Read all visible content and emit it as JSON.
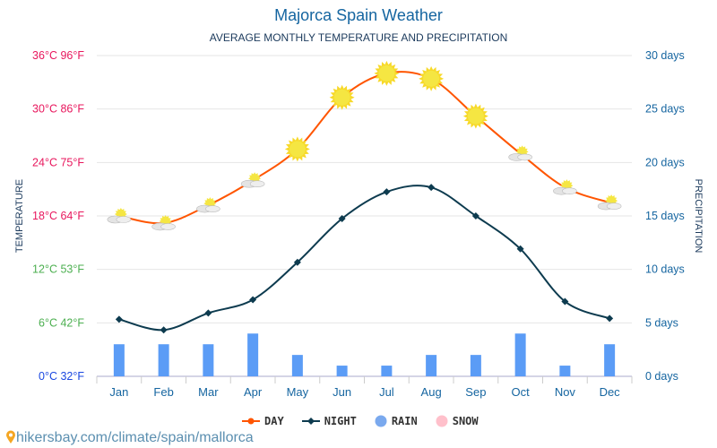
{
  "title": "Majorca Spain Weather",
  "subtitle": "AVERAGE MONTHLY TEMPERATURE AND PRECIPITATION",
  "source": "hikersbay.com/climate/spain/mallorca",
  "legend": {
    "day": "DAY",
    "night": "NIGHT",
    "rain": "RAIN",
    "snow": "SNOW"
  },
  "colors": {
    "day": "#ff5500",
    "night": "#0d3b4f",
    "rain": "#5b9cf6",
    "snow": "#ffc0cb",
    "hot": "#e8175d",
    "mild": "#4caf50",
    "cold": "#1a47e0",
    "right": "#1565a0"
  },
  "chart_data": {
    "type": "line+bar",
    "title": "Majorca Spain Weather",
    "categories": [
      "Jan",
      "Feb",
      "Mar",
      "Apr",
      "May",
      "Jun",
      "Jul",
      "Aug",
      "Sep",
      "Oct",
      "Nov",
      "Dec"
    ],
    "ylabel_left": "TEMPERATURE",
    "ylabel_right": "PRECIPITATION",
    "ylim_left": [
      0,
      36
    ],
    "ylim_right": [
      0,
      30
    ],
    "left_ticks": [
      "0°C 32°F",
      "6°C 42°F",
      "12°C 53°F",
      "18°C 64°F",
      "24°C 75°F",
      "30°C 86°F",
      "36°C 96°F"
    ],
    "right_ticks": [
      "0 days",
      "5 days",
      "10 days",
      "15 days",
      "20 days",
      "25 days",
      "30 days"
    ],
    "series": [
      {
        "name": "DAY",
        "values": [
          18,
          17.2,
          19.2,
          22,
          25.5,
          31.3,
          34,
          33.4,
          29.2,
          25,
          21.2,
          19.5
        ]
      },
      {
        "name": "NIGHT",
        "values": [
          6.4,
          5.2,
          7.1,
          8.6,
          12.8,
          17.7,
          20.7,
          21.2,
          18,
          14.3,
          8.4,
          6.5
        ]
      },
      {
        "name": "RAIN",
        "axis": "right",
        "values": [
          3,
          3,
          3,
          4,
          2,
          1,
          1,
          2,
          2,
          4,
          1,
          3
        ]
      }
    ],
    "icons": [
      "partly-cloudy",
      "partly-cloudy",
      "partly-cloudy",
      "partly-cloudy",
      "sun",
      "sun",
      "sun",
      "sun",
      "sun",
      "partly-cloudy",
      "partly-cloudy",
      "partly-cloudy"
    ],
    "grid": true,
    "legend_position": "bottom"
  }
}
